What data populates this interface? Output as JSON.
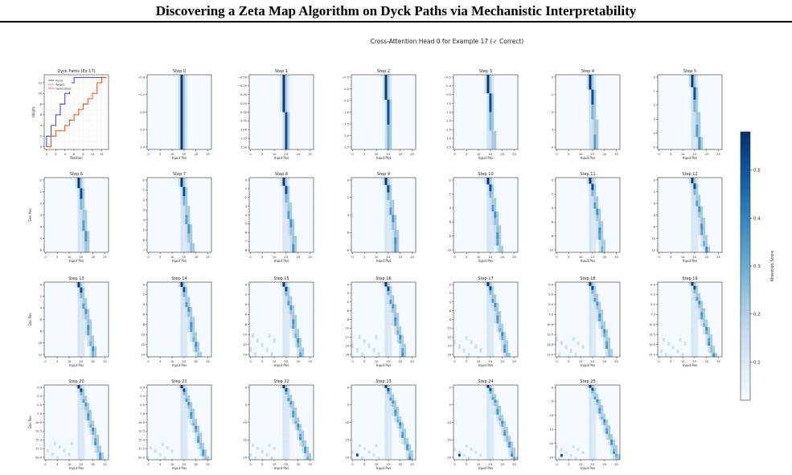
{
  "page": {
    "title": "Discovering a Zeta Map Algorithm on Dyck Paths via Mechanistic Interpretability"
  },
  "chart_data": {
    "type": "heatmap",
    "suptitle": "Cross-Attention Head 0 for Example 17 (✓ Correct)",
    "colormap": "Blues",
    "colorbar": {
      "label": "Attention Score",
      "ticks": [
        "0.1",
        "0.2",
        "0.3",
        "0.4",
        "0.5"
      ],
      "range": [
        0.02,
        0.58
      ]
    },
    "xlabel": "Input Pos",
    "ylabel": "Gen Pos",
    "x_ticks": [
      "0",
      "5",
      "10",
      "15",
      "20",
      "25"
    ],
    "input_length": 27,
    "dyck_panel": {
      "title": "Dyck Paths (Ex 17)",
      "xlabel": "Position",
      "ylabel": "Height",
      "x_ticks": [
        "0",
        "2",
        "4",
        "6",
        "8",
        "10",
        "12"
      ],
      "y_ticks": [
        "0",
        "2",
        "4",
        "6",
        "8",
        "10",
        "12"
      ],
      "xlim": [
        -0.5,
        13.5
      ],
      "ylim": [
        -0.5,
        13.5
      ],
      "legend": [
        {
          "name": "Input",
          "color": "#3a3ad8"
        },
        {
          "name": "Target",
          "color": "#ff7f0e"
        },
        {
          "name": "Generated",
          "color": "#d62728"
        }
      ],
      "series": [
        {
          "name": "Input",
          "x": [
            0,
            0,
            1,
            1,
            2,
            2,
            3,
            3,
            4,
            4,
            5,
            5,
            6,
            6,
            7,
            7,
            8,
            8,
            9,
            9,
            10,
            10,
            11,
            11,
            12,
            12,
            13,
            13
          ],
          "y": [
            0,
            2,
            2,
            4,
            4,
            6,
            6,
            8,
            8,
            10,
            10,
            12,
            12,
            13,
            13,
            13,
            13,
            13,
            13,
            13,
            13,
            13,
            13,
            13,
            13,
            13,
            13,
            13
          ]
        },
        {
          "name": "Target",
          "x": [
            0,
            1,
            1,
            2,
            2,
            3,
            3,
            4,
            4,
            5,
            5,
            6,
            6,
            7,
            7,
            8,
            8,
            9,
            9,
            10,
            10,
            11,
            11,
            12,
            12,
            13
          ],
          "y": [
            0,
            0,
            2,
            2,
            3,
            3,
            3,
            3,
            4,
            4,
            5,
            5,
            6,
            6,
            7,
            7,
            8,
            8,
            9,
            9,
            10,
            10,
            12,
            12,
            13,
            13
          ]
        },
        {
          "name": "Generated",
          "x": [
            0,
            1,
            1,
            2,
            2,
            3,
            3,
            4,
            4,
            5,
            5,
            6,
            6,
            7,
            7,
            8,
            8,
            9,
            9,
            10,
            10,
            11,
            11,
            12,
            12,
            13
          ],
          "y": [
            0,
            0,
            2,
            2,
            3,
            3,
            3,
            3,
            4,
            4,
            5,
            5,
            6,
            6,
            7,
            7,
            8,
            8,
            9,
            9,
            10,
            10,
            12,
            12,
            13,
            13
          ]
        }
      ]
    },
    "steps": [
      {
        "title": "Step 0",
        "rows": 1,
        "y_ticks": [
          "−0.4",
          "−0.2",
          "0.0",
          "0.2",
          "0.4"
        ]
      },
      {
        "title": "Step 1",
        "rows": 2,
        "y_ticks": [
          "−0.50",
          "−0.25",
          "0.00",
          "0.25",
          "0.50",
          "0.75",
          "1.00",
          "1.25",
          "1.50"
        ]
      },
      {
        "title": "Step 2",
        "rows": 3,
        "y_ticks": [
          "−0.5",
          "0.0",
          "0.5",
          "1.0",
          "1.5",
          "2.0",
          "2.5"
        ]
      },
      {
        "title": "Step 3",
        "rows": 4,
        "y_ticks": [
          "−0.5",
          "0.0",
          "0.5",
          "1.0",
          "1.5",
          "2.0",
          "2.5",
          "3.0",
          "3.5"
        ]
      },
      {
        "title": "Step 4",
        "rows": 5,
        "y_ticks": [
          "0",
          "1",
          "2",
          "3",
          "4"
        ]
      },
      {
        "title": "Step 5",
        "rows": 6,
        "y_ticks": [
          "0",
          "1",
          "2",
          "3",
          "4",
          "5"
        ]
      },
      {
        "title": "Step 6",
        "rows": 7,
        "y_ticks": [
          "0",
          "1",
          "2",
          "3",
          "4",
          "5",
          "6"
        ]
      },
      {
        "title": "Step 7",
        "rows": 8,
        "y_ticks": [
          "0",
          "1",
          "2",
          "3",
          "4",
          "5",
          "6",
          "7"
        ]
      },
      {
        "title": "Step 8",
        "rows": 9,
        "y_ticks": [
          "0",
          "1",
          "2",
          "3",
          "4",
          "5",
          "6",
          "7",
          "8"
        ]
      },
      {
        "title": "Step 9",
        "rows": 10,
        "y_ticks": [
          "0",
          "2",
          "4",
          "6",
          "8"
        ]
      },
      {
        "title": "Step 10",
        "rows": 11,
        "y_ticks": [
          "0",
          "2",
          "4",
          "6",
          "8",
          "10"
        ]
      },
      {
        "title": "Step 11",
        "rows": 12,
        "y_ticks": [
          "0",
          "2",
          "4",
          "6",
          "8",
          "10"
        ]
      },
      {
        "title": "Step 12",
        "rows": 13,
        "y_ticks": [
          "0",
          "2",
          "4",
          "6",
          "8",
          "10",
          "12"
        ]
      },
      {
        "title": "Step 13",
        "rows": 14,
        "y_ticks": [
          "0",
          "2",
          "4",
          "6",
          "8",
          "10",
          "12"
        ]
      },
      {
        "title": "Step 14",
        "rows": 15,
        "y_ticks": [
          "0",
          "2",
          "4",
          "6",
          "8",
          "10",
          "12",
          "14"
        ]
      },
      {
        "title": "Step 15",
        "rows": 16,
        "y_ticks": [
          "0",
          "2",
          "4",
          "6",
          "8",
          "10",
          "12",
          "14"
        ]
      },
      {
        "title": "Step 16",
        "rows": 17,
        "y_ticks": [
          "0",
          "2",
          "4",
          "6",
          "8",
          "10",
          "12",
          "14",
          "16"
        ]
      },
      {
        "title": "Step 17",
        "rows": 18,
        "y_ticks": [
          "0",
          "2",
          "4",
          "6",
          "8",
          "10",
          "12",
          "14",
          "16"
        ]
      },
      {
        "title": "Step 18",
        "rows": 19,
        "y_ticks": [
          "0.0",
          "2.5",
          "5.0",
          "7.5",
          "10.0",
          "12.5",
          "15.0",
          "17.5"
        ]
      },
      {
        "title": "Step 19",
        "rows": 20,
        "y_ticks": [
          "0.0",
          "2.5",
          "5.0",
          "7.5",
          "10.0",
          "12.5",
          "15.0",
          "17.5"
        ]
      },
      {
        "title": "Step 20",
        "rows": 21,
        "y_ticks": [
          "0.0",
          "2.5",
          "5.0",
          "7.5",
          "10.0",
          "12.5",
          "15.0",
          "17.5",
          "20.0"
        ]
      },
      {
        "title": "Step 21",
        "rows": 22,
        "y_ticks": [
          "0.0",
          "2.5",
          "5.0",
          "7.5",
          "10.0",
          "12.5",
          "15.0",
          "17.5",
          "20.0"
        ]
      },
      {
        "title": "Step 22",
        "rows": 23,
        "y_ticks": [
          "0",
          "5",
          "10",
          "15",
          "20"
        ]
      },
      {
        "title": "Step 23",
        "rows": 24,
        "y_ticks": [
          "0",
          "5",
          "10",
          "15",
          "20"
        ]
      },
      {
        "title": "Step 24",
        "rows": 25,
        "y_ticks": [
          "0",
          "5",
          "10",
          "15",
          "20"
        ]
      },
      {
        "title": "Step 25",
        "rows": 26,
        "y_ticks": [
          "0",
          "5",
          "10",
          "15",
          "20",
          "25"
        ]
      }
    ]
  }
}
